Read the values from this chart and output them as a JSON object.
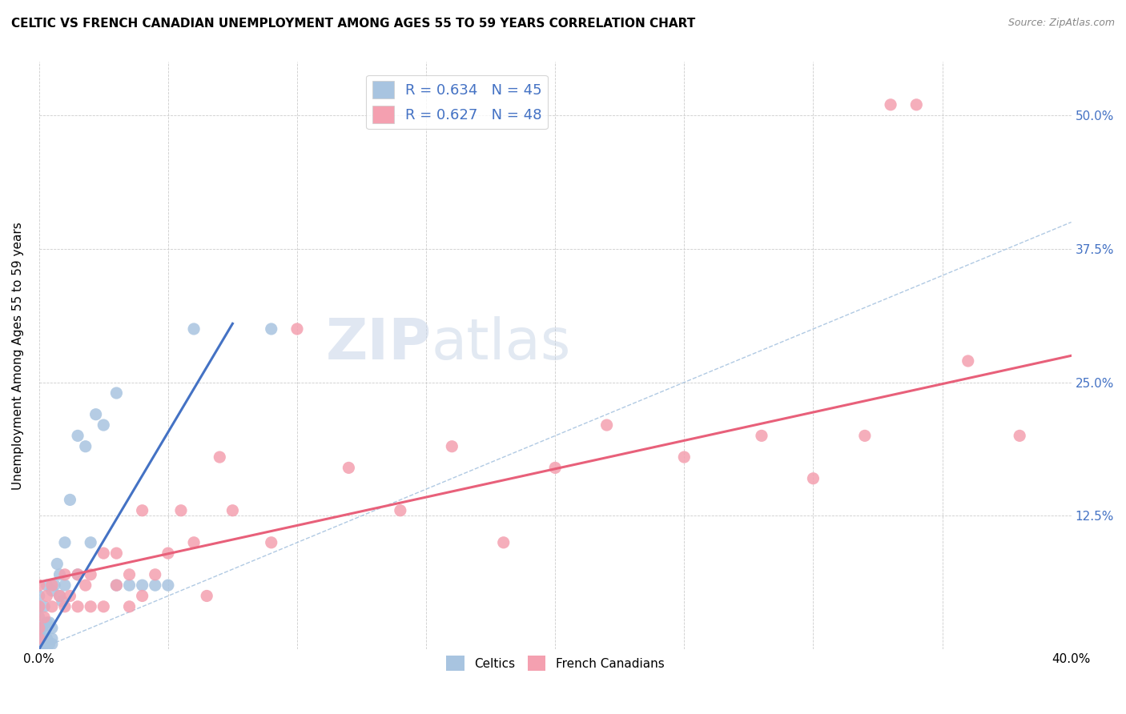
{
  "title": "CELTIC VS FRENCH CANADIAN UNEMPLOYMENT AMONG AGES 55 TO 59 YEARS CORRELATION CHART",
  "source": "Source: ZipAtlas.com",
  "ylabel": "Unemployment Among Ages 55 to 59 years",
  "xlim": [
    0.0,
    0.4
  ],
  "ylim": [
    0.0,
    0.55
  ],
  "x_ticks": [
    0.0,
    0.05,
    0.1,
    0.15,
    0.2,
    0.25,
    0.3,
    0.35,
    0.4
  ],
  "y_ticks": [
    0.0,
    0.125,
    0.25,
    0.375,
    0.5
  ],
  "y_tick_labels": [
    "",
    "12.5%",
    "25.0%",
    "37.5%",
    "50.0%"
  ],
  "celtic_color": "#a8c4e0",
  "french_color": "#f4a0b0",
  "celtic_line_color": "#4472c4",
  "french_line_color": "#e8607a",
  "diag_color": "#a8c4e0",
  "celtic_R": 0.634,
  "celtic_N": 45,
  "french_R": 0.627,
  "french_N": 48,
  "legend_R_color": "#4472c4",
  "background_color": "#ffffff",
  "watermark_zip": "ZIP",
  "watermark_atlas": "atlas",
  "celtic_line_x0": 0.0,
  "celtic_line_y0": 0.0,
  "celtic_line_x1": 0.075,
  "celtic_line_y1": 0.305,
  "french_line_x0": 0.0,
  "french_line_y0": 0.063,
  "french_line_x1": 0.4,
  "french_line_y1": 0.275,
  "celtics_x": [
    0.0,
    0.0,
    0.0,
    0.0,
    0.0,
    0.0,
    0.0,
    0.0,
    0.001,
    0.001,
    0.001,
    0.002,
    0.002,
    0.002,
    0.003,
    0.003,
    0.003,
    0.004,
    0.004,
    0.005,
    0.005,
    0.005,
    0.005,
    0.006,
    0.007,
    0.008,
    0.008,
    0.009,
    0.01,
    0.01,
    0.012,
    0.015,
    0.015,
    0.018,
    0.02,
    0.022,
    0.025,
    0.03,
    0.03,
    0.035,
    0.04,
    0.045,
    0.05,
    0.06,
    0.09
  ],
  "celtics_y": [
    0.0,
    0.005,
    0.01,
    0.015,
    0.02,
    0.03,
    0.04,
    0.05,
    0.0,
    0.01,
    0.02,
    0.005,
    0.015,
    0.04,
    0.01,
    0.025,
    0.06,
    0.005,
    0.025,
    0.005,
    0.01,
    0.02,
    0.055,
    0.06,
    0.08,
    0.05,
    0.07,
    0.045,
    0.06,
    0.1,
    0.14,
    0.07,
    0.2,
    0.19,
    0.1,
    0.22,
    0.21,
    0.06,
    0.24,
    0.06,
    0.06,
    0.06,
    0.06,
    0.3,
    0.3
  ],
  "french_x": [
    0.0,
    0.0,
    0.0,
    0.0,
    0.002,
    0.003,
    0.005,
    0.005,
    0.008,
    0.01,
    0.01,
    0.012,
    0.015,
    0.015,
    0.018,
    0.02,
    0.02,
    0.025,
    0.025,
    0.03,
    0.03,
    0.035,
    0.035,
    0.04,
    0.04,
    0.045,
    0.05,
    0.055,
    0.06,
    0.065,
    0.07,
    0.075,
    0.09,
    0.1,
    0.12,
    0.14,
    0.16,
    0.18,
    0.2,
    0.22,
    0.25,
    0.28,
    0.3,
    0.32,
    0.33,
    0.34,
    0.36,
    0.38
  ],
  "french_y": [
    0.01,
    0.02,
    0.04,
    0.06,
    0.03,
    0.05,
    0.04,
    0.06,
    0.05,
    0.04,
    0.07,
    0.05,
    0.04,
    0.07,
    0.06,
    0.04,
    0.07,
    0.04,
    0.09,
    0.06,
    0.09,
    0.04,
    0.07,
    0.05,
    0.13,
    0.07,
    0.09,
    0.13,
    0.1,
    0.05,
    0.18,
    0.13,
    0.1,
    0.3,
    0.17,
    0.13,
    0.19,
    0.1,
    0.17,
    0.21,
    0.18,
    0.2,
    0.16,
    0.2,
    0.51,
    0.51,
    0.27,
    0.2
  ]
}
